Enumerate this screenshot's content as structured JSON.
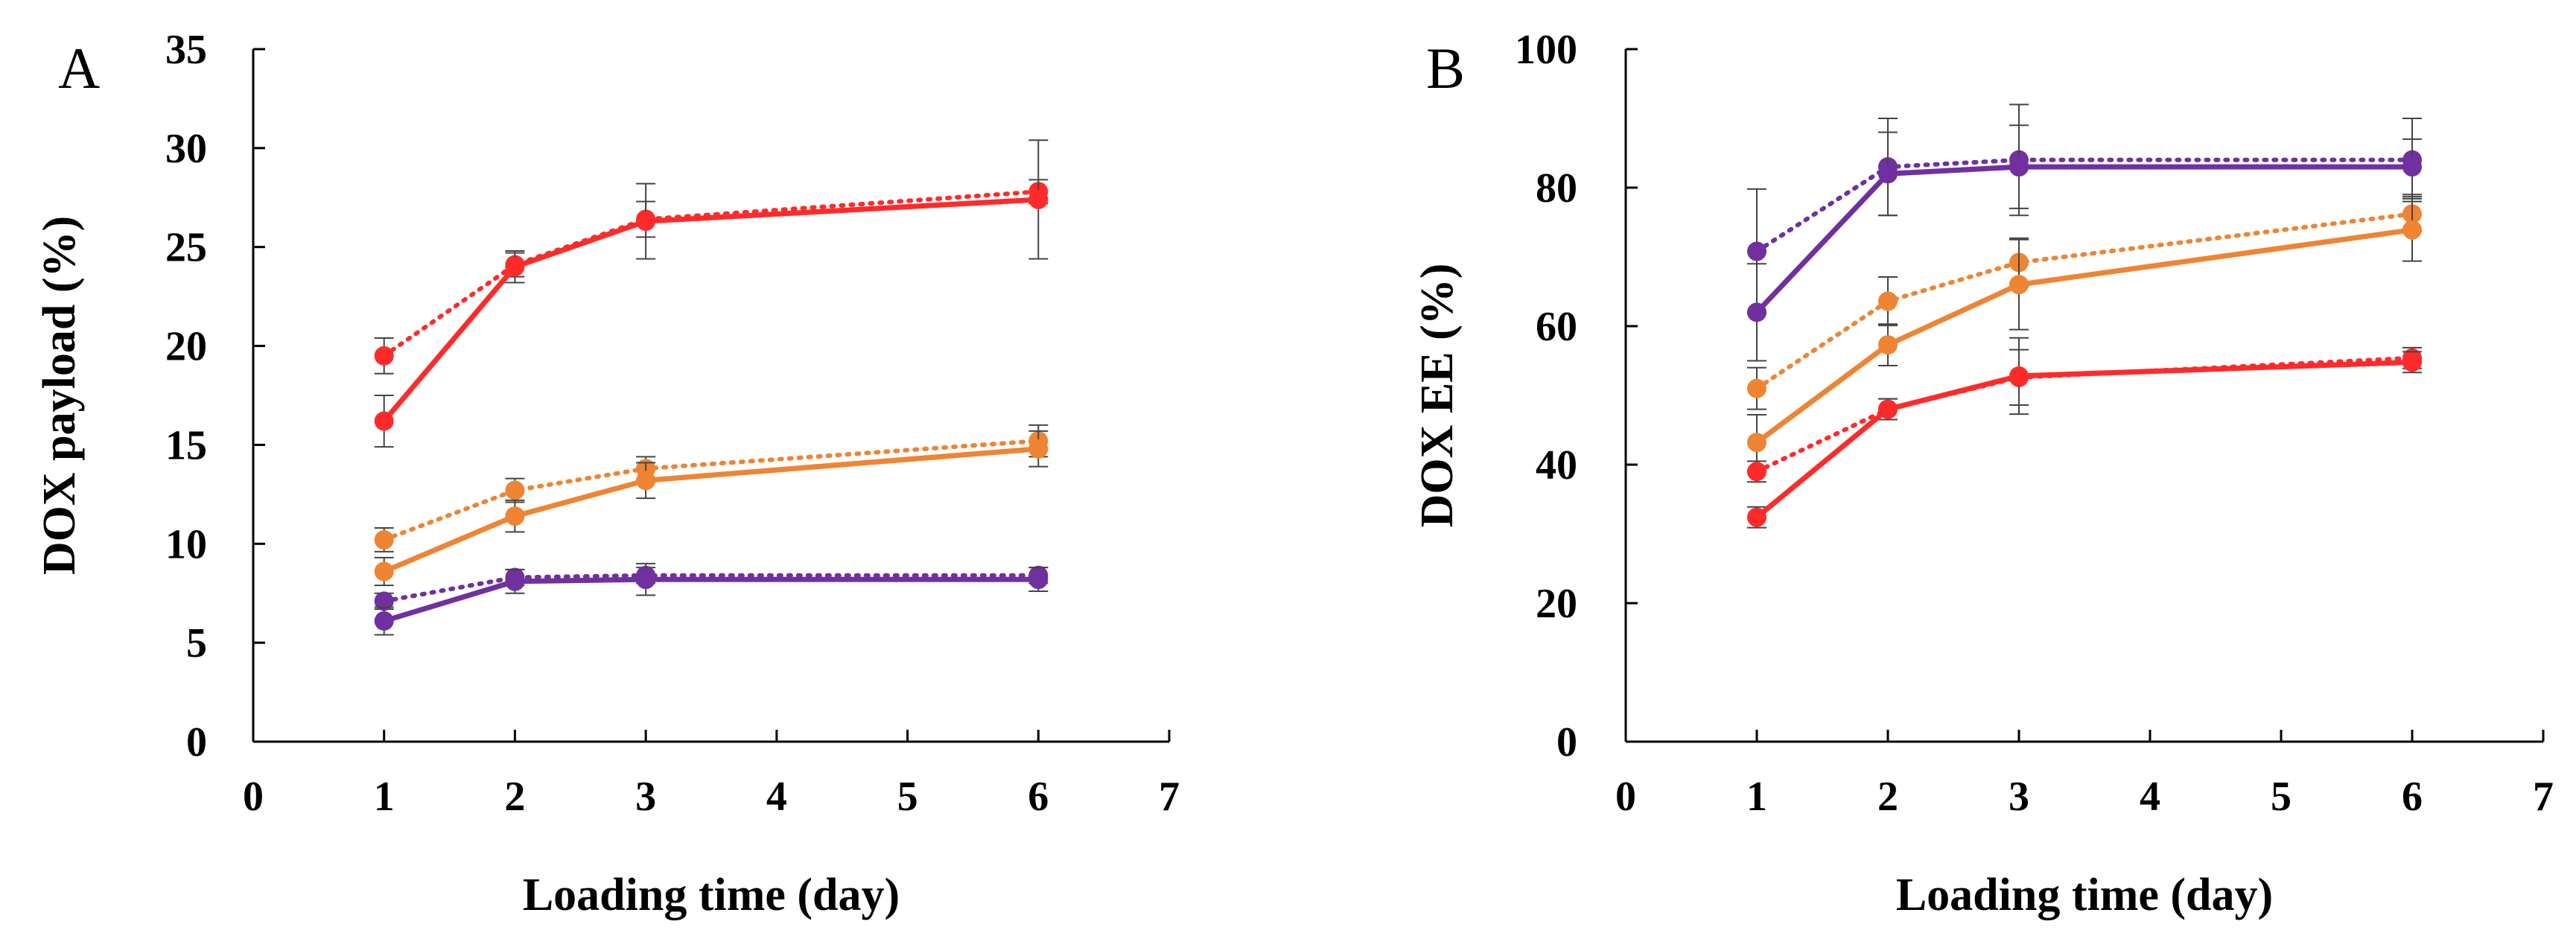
{
  "chart_data": [
    {
      "type": "line",
      "panel_label": "A",
      "title": "",
      "xlabel": "Loading time (day)",
      "ylabel": "DOX payload (%)",
      "xlim": [
        0,
        7
      ],
      "ylim": [
        0,
        35
      ],
      "xticks": [
        0,
        1,
        2,
        3,
        4,
        5,
        6,
        7
      ],
      "yticks": [
        0,
        5,
        10,
        15,
        20,
        25,
        30,
        35
      ],
      "grid": false,
      "legend": "none",
      "x": [
        1,
        2,
        3,
        6
      ],
      "series": [
        {
          "name": "red-dotted",
          "color": "#ff2a2a",
          "style": "dotted",
          "values": [
            19.5,
            24.1,
            26.4,
            27.8
          ],
          "errors": [
            0.9,
            0.6,
            0.9,
            0.6
          ]
        },
        {
          "name": "red-solid",
          "color": "#ff2a2a",
          "style": "solid",
          "values": [
            16.2,
            24.0,
            26.3,
            27.4
          ],
          "errors": [
            1.3,
            0.8,
            1.9,
            3.0
          ]
        },
        {
          "name": "orange-dotted",
          "color": "#ef8433",
          "style": "dotted",
          "values": [
            10.2,
            12.7,
            13.8,
            15.2
          ],
          "errors": [
            0.6,
            0.6,
            0.6,
            0.8
          ]
        },
        {
          "name": "orange-solid",
          "color": "#ef8433",
          "style": "solid",
          "values": [
            8.6,
            11.4,
            13.2,
            14.8
          ],
          "errors": [
            0.7,
            0.8,
            0.9,
            0.9
          ]
        },
        {
          "name": "purple-dotted",
          "color": "#7030a0",
          "style": "dotted",
          "values": [
            7.1,
            8.3,
            8.4,
            8.4
          ],
          "errors": [
            0.4,
            0.4,
            0.4,
            0.4
          ]
        },
        {
          "name": "purple-solid",
          "color": "#7030a0",
          "style": "solid",
          "values": [
            6.1,
            8.1,
            8.2,
            8.2
          ],
          "errors": [
            0.7,
            0.6,
            0.8,
            0.6
          ]
        }
      ]
    },
    {
      "type": "line",
      "panel_label": "B",
      "title": "",
      "xlabel": "Loading time (day)",
      "ylabel": "DOX EE (%)",
      "xlim": [
        0,
        7
      ],
      "ylim": [
        0,
        100
      ],
      "xticks": [
        0,
        1,
        2,
        3,
        4,
        5,
        6,
        7
      ],
      "yticks": [
        0,
        20,
        40,
        60,
        80,
        100
      ],
      "grid": false,
      "legend": "none",
      "x": [
        1,
        2,
        3,
        6
      ],
      "series": [
        {
          "name": "purple-dotted",
          "color": "#7030a0",
          "style": "dotted",
          "values": [
            70.8,
            83.0,
            84.0,
            84.0
          ],
          "errors": [
            9.0,
            7.0,
            8.0,
            6.0
          ]
        },
        {
          "name": "purple-solid",
          "color": "#7030a0",
          "style": "solid",
          "values": [
            62.0,
            82.0,
            83.0,
            83.0
          ],
          "errors": [
            7.0,
            6.0,
            6.0,
            4.0
          ]
        },
        {
          "name": "orange-dotted",
          "color": "#ef8433",
          "style": "dotted",
          "values": [
            51.0,
            63.6,
            69.2,
            76.2
          ],
          "errors": [
            3.0,
            3.5,
            3.5,
            2.5
          ]
        },
        {
          "name": "orange-solid",
          "color": "#ef8433",
          "style": "solid",
          "values": [
            43.2,
            57.3,
            66.0,
            73.9
          ],
          "errors": [
            4.0,
            3.0,
            6.5,
            4.5
          ]
        },
        {
          "name": "red-dotted",
          "color": "#ff2a2a",
          "style": "dotted",
          "values": [
            39.0,
            48.0,
            52.6,
            55.4
          ],
          "errors": [
            1.5,
            1.5,
            4.0,
            1.5
          ]
        },
        {
          "name": "red-solid",
          "color": "#ff2a2a",
          "style": "solid",
          "values": [
            32.4,
            48.0,
            52.8,
            54.8
          ],
          "errors": [
            1.5,
            1.5,
            5.5,
            1.5
          ]
        }
      ]
    }
  ]
}
